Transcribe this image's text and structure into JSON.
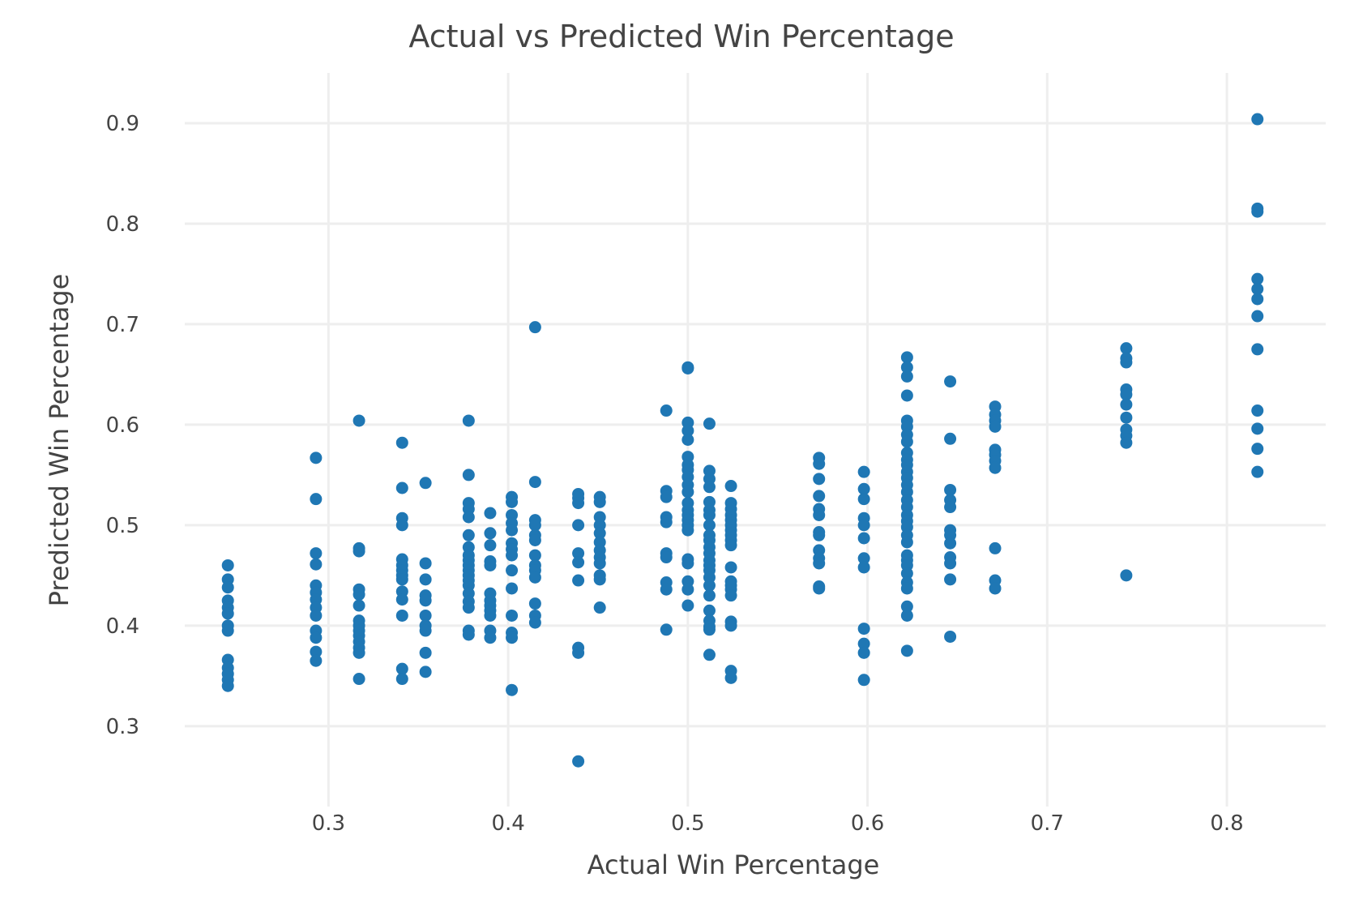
{
  "chart_data": {
    "type": "scatter",
    "title": "Actual vs Predicted Win Percentage",
    "xlabel": "Actual Win Percentage",
    "ylabel": "Predicted Win Percentage",
    "xlim": [
      0.22,
      0.855
    ],
    "ylim": [
      0.22,
      0.95
    ],
    "xticks": [
      0.3,
      0.4,
      0.5,
      0.6,
      0.7,
      0.8
    ],
    "yticks": [
      0.3,
      0.4,
      0.5,
      0.6,
      0.7,
      0.8,
      0.9
    ],
    "grid": true,
    "color": "#1f77b4",
    "columns": [
      {
        "x": 0.244,
        "y": [
          0.46,
          0.446,
          0.438,
          0.425,
          0.418,
          0.412,
          0.4,
          0.395,
          0.366,
          0.358,
          0.352,
          0.346,
          0.34
        ]
      },
      {
        "x": 0.293,
        "y": [
          0.567,
          0.526,
          0.472,
          0.461,
          0.44,
          0.433,
          0.426,
          0.418,
          0.41,
          0.395,
          0.388,
          0.374,
          0.365
        ]
      },
      {
        "x": 0.317,
        "y": [
          0.604,
          0.477,
          0.474,
          0.436,
          0.431,
          0.42,
          0.405,
          0.4,
          0.395,
          0.39,
          0.384,
          0.378,
          0.373,
          0.347
        ]
      },
      {
        "x": 0.341,
        "y": [
          0.582,
          0.537,
          0.507,
          0.5,
          0.466,
          0.46,
          0.455,
          0.45,
          0.446,
          0.434,
          0.426,
          0.41,
          0.357,
          0.347
        ]
      },
      {
        "x": 0.354,
        "y": [
          0.542,
          0.462,
          0.446,
          0.43,
          0.425,
          0.41,
          0.4,
          0.395,
          0.373,
          0.354
        ]
      },
      {
        "x": 0.378,
        "y": [
          0.604,
          0.55,
          0.522,
          0.516,
          0.508,
          0.49,
          0.478,
          0.47,
          0.465,
          0.46,
          0.455,
          0.45,
          0.445,
          0.44,
          0.432,
          0.424,
          0.418,
          0.395,
          0.391
        ]
      },
      {
        "x": 0.39,
        "y": [
          0.512,
          0.492,
          0.48,
          0.464,
          0.46,
          0.432,
          0.425,
          0.42,
          0.415,
          0.41,
          0.395,
          0.388
        ]
      },
      {
        "x": 0.402,
        "y": [
          0.528,
          0.523,
          0.51,
          0.502,
          0.495,
          0.482,
          0.476,
          0.47,
          0.455,
          0.437,
          0.41,
          0.393,
          0.388,
          0.336
        ]
      },
      {
        "x": 0.415,
        "y": [
          0.697,
          0.543,
          0.505,
          0.5,
          0.49,
          0.485,
          0.47,
          0.46,
          0.455,
          0.448,
          0.422,
          0.41,
          0.403
        ]
      },
      {
        "x": 0.439,
        "y": [
          0.531,
          0.527,
          0.522,
          0.5,
          0.472,
          0.463,
          0.445,
          0.378,
          0.373,
          0.265
        ]
      },
      {
        "x": 0.451,
        "y": [
          0.528,
          0.523,
          0.508,
          0.5,
          0.492,
          0.483,
          0.475,
          0.468,
          0.462,
          0.45,
          0.446,
          0.418
        ]
      },
      {
        "x": 0.488,
        "y": [
          0.614,
          0.534,
          0.528,
          0.508,
          0.503,
          0.472,
          0.468,
          0.443,
          0.436,
          0.396
        ]
      },
      {
        "x": 0.5,
        "y": [
          0.657,
          0.656,
          0.602,
          0.594,
          0.585,
          0.568,
          0.56,
          0.555,
          0.548,
          0.54,
          0.533,
          0.522,
          0.515,
          0.51,
          0.505,
          0.5,
          0.495,
          0.466,
          0.462,
          0.444,
          0.436,
          0.42
        ]
      },
      {
        "x": 0.512,
        "y": [
          0.601,
          0.554,
          0.546,
          0.538,
          0.523,
          0.515,
          0.51,
          0.5,
          0.49,
          0.485,
          0.478,
          0.472,
          0.465,
          0.46,
          0.455,
          0.448,
          0.44,
          0.43,
          0.415,
          0.405,
          0.399,
          0.396,
          0.371
        ]
      },
      {
        "x": 0.524,
        "y": [
          0.539,
          0.522,
          0.516,
          0.51,
          0.505,
          0.5,
          0.495,
          0.49,
          0.485,
          0.48,
          0.458,
          0.444,
          0.44,
          0.436,
          0.43,
          0.404,
          0.4,
          0.355,
          0.348
        ]
      },
      {
        "x": 0.573,
        "y": [
          0.567,
          0.561,
          0.546,
          0.529,
          0.516,
          0.51,
          0.493,
          0.49,
          0.475,
          0.467,
          0.462,
          0.439,
          0.437
        ]
      },
      {
        "x": 0.598,
        "y": [
          0.553,
          0.536,
          0.526,
          0.507,
          0.5,
          0.487,
          0.467,
          0.458,
          0.397,
          0.382,
          0.373,
          0.346
        ]
      },
      {
        "x": 0.622,
        "y": [
          0.667,
          0.657,
          0.648,
          0.629,
          0.604,
          0.598,
          0.59,
          0.583,
          0.572,
          0.565,
          0.56,
          0.553,
          0.547,
          0.54,
          0.533,
          0.525,
          0.518,
          0.51,
          0.504,
          0.498,
          0.49,
          0.483,
          0.47,
          0.465,
          0.46,
          0.452,
          0.443,
          0.437,
          0.419,
          0.41,
          0.375
        ]
      },
      {
        "x": 0.646,
        "y": [
          0.643,
          0.586,
          0.535,
          0.525,
          0.518,
          0.495,
          0.49,
          0.482,
          0.468,
          0.462,
          0.446,
          0.389
        ]
      },
      {
        "x": 0.671,
        "y": [
          0.618,
          0.61,
          0.604,
          0.598,
          0.575,
          0.57,
          0.564,
          0.557,
          0.477,
          0.445,
          0.437
        ]
      },
      {
        "x": 0.744,
        "y": [
          0.676,
          0.666,
          0.662,
          0.635,
          0.63,
          0.62,
          0.607,
          0.595,
          0.589,
          0.582,
          0.45
        ]
      },
      {
        "x": 0.817,
        "y": [
          0.904,
          0.815,
          0.812,
          0.745,
          0.735,
          0.725,
          0.708,
          0.675,
          0.614,
          0.596,
          0.576,
          0.553
        ]
      }
    ]
  }
}
